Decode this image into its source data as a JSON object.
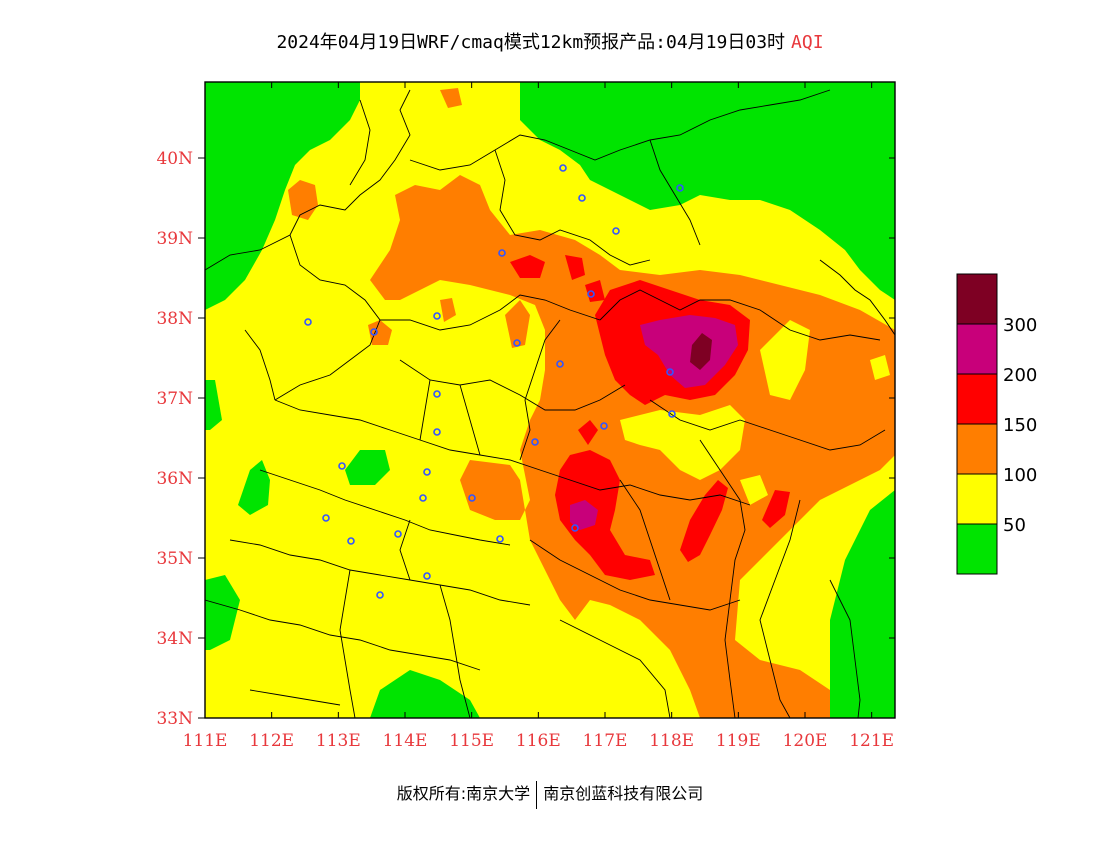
{
  "title": {
    "main": "2024年04月19日WRF/cmaq模式12km预报产品:04月19日03时",
    "tag": "AQI"
  },
  "map": {
    "lon_range": [
      111,
      121.35
    ],
    "lat_range": [
      33,
      40.95
    ],
    "x_ticks": [
      "111E",
      "112E",
      "113E",
      "114E",
      "115E",
      "116E",
      "117E",
      "118E",
      "119E",
      "120E",
      "121E"
    ],
    "y_ticks": [
      "33N",
      "34N",
      "35N",
      "36N",
      "37N",
      "38N",
      "39N",
      "40N"
    ],
    "colors": {
      "good": "#00e400",
      "moderate": "#ffff00",
      "usg": "#ff7e00",
      "unhealthy": "#ff0000",
      "very_unhealthy": "#c8007a",
      "hazardous": "#7e0023",
      "tick": "#e8383c",
      "station": "#3355ff"
    }
  },
  "legend": {
    "labels": [
      "300",
      "200",
      "150",
      "100",
      "50"
    ],
    "colors": [
      "#7e0023",
      "#c8007a",
      "#ff0000",
      "#ff7e00",
      "#ffff00",
      "#00e400"
    ]
  },
  "footer": {
    "left": "版权所有:南京大学",
    "right": "南京创蓝科技有限公司"
  }
}
